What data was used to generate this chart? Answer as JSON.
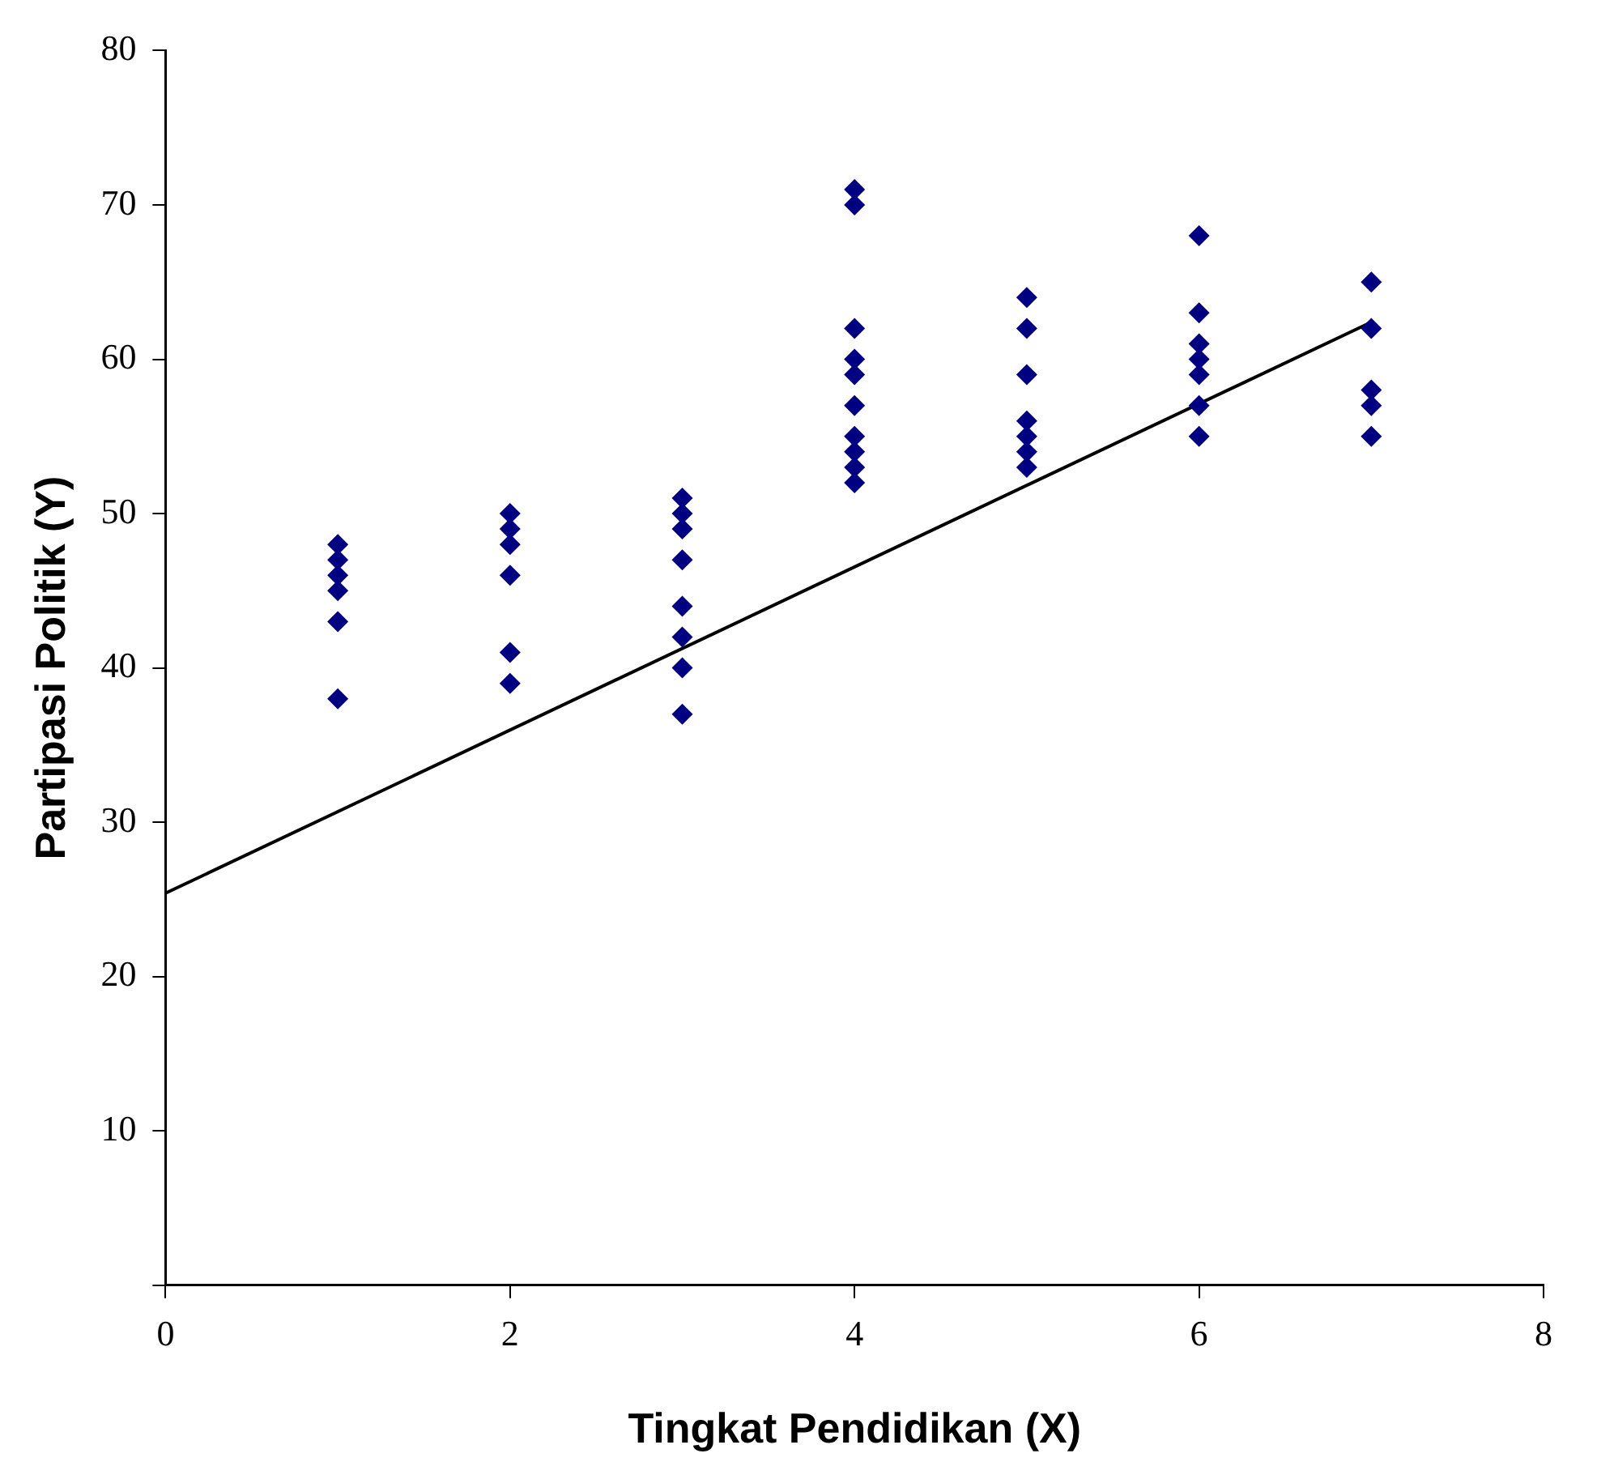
{
  "chart_data": {
    "type": "scatter",
    "xlabel": "Tingkat Pendidikan (X)",
    "ylabel": "Partipasi Politik (Y)",
    "xlim": [
      0,
      8
    ],
    "ylim": [
      0,
      80
    ],
    "xticks": [
      0,
      2,
      4,
      6,
      8
    ],
    "yticks": [
      {
        "value": 0,
        "label": null
      },
      10,
      20,
      30,
      40,
      50,
      60,
      70,
      80
    ],
    "grid": false,
    "legend": false,
    "marker": "diamond",
    "series": [
      {
        "type": "scatter",
        "color": "#000080",
        "x": [
          1,
          1,
          1,
          1,
          1,
          1,
          2,
          2,
          2,
          2,
          2,
          2,
          3,
          3,
          3,
          3,
          3,
          3,
          3,
          3,
          4,
          4,
          4,
          4,
          4,
          4,
          4,
          4,
          4,
          4,
          5,
          5,
          5,
          5,
          5,
          5,
          5,
          6,
          6,
          6,
          6,
          6,
          6,
          6,
          7,
          7,
          7,
          7,
          7
        ],
        "values": [
          48,
          47,
          46,
          45,
          43,
          38,
          50,
          49,
          48,
          46,
          41,
          39,
          51,
          50,
          49,
          47,
          44,
          42,
          40,
          37,
          71,
          70,
          62,
          60,
          59,
          57,
          55,
          54,
          53,
          52,
          64,
          62,
          59,
          56,
          55,
          54,
          53,
          68,
          63,
          61,
          60,
          59,
          57,
          55,
          65,
          62,
          58,
          57,
          55
        ]
      },
      {
        "type": "line",
        "color": "#000000",
        "marker": "none",
        "line_style": "solid",
        "x": [
          0,
          7
        ],
        "values": [
          25.4,
          62.4
        ]
      }
    ]
  }
}
